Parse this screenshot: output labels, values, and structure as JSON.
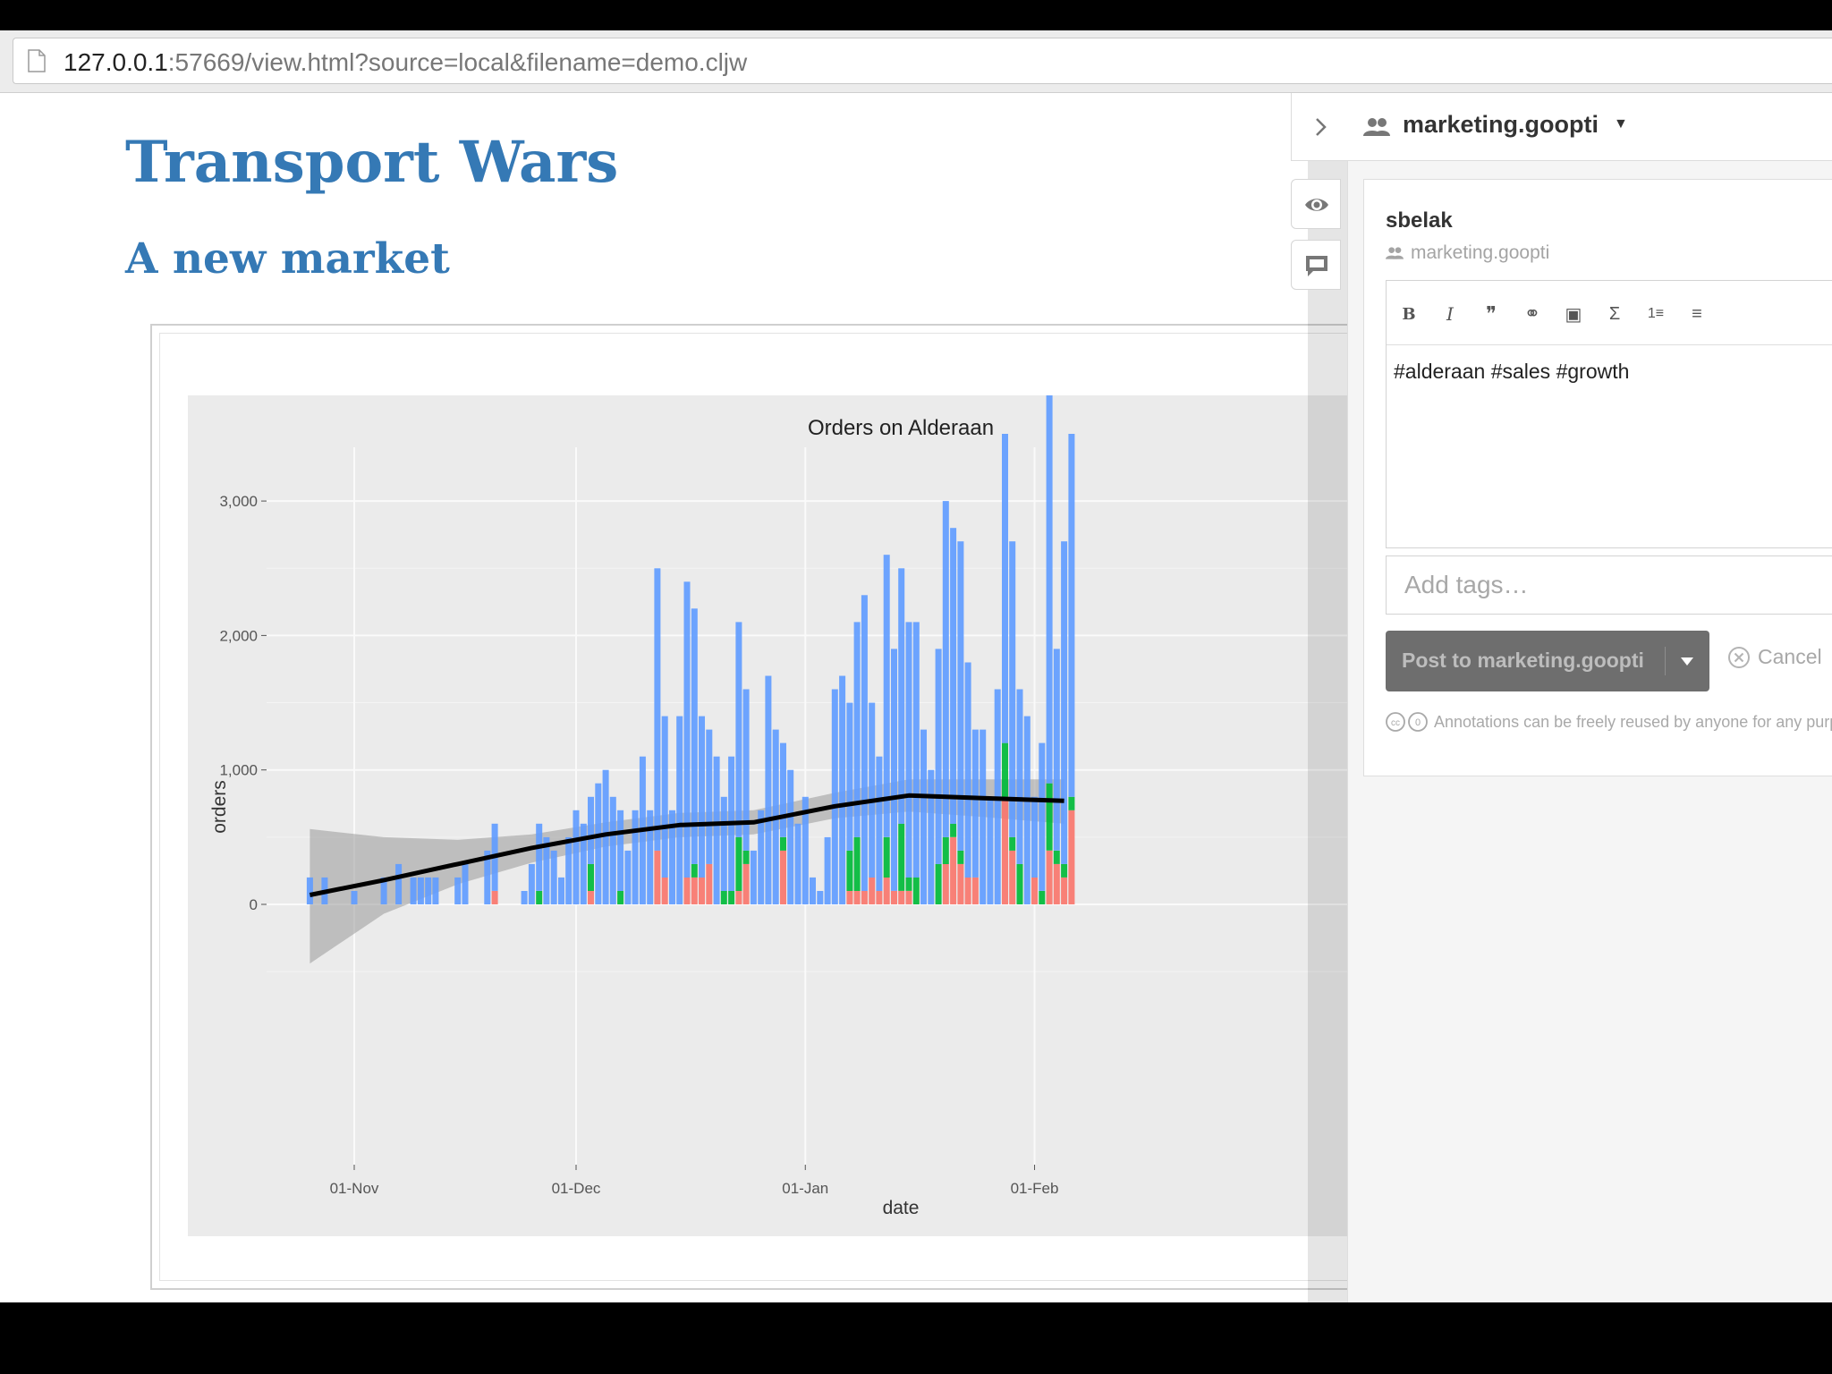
{
  "browser": {
    "url_host": "127.0.0.1",
    "url_rest": ":57669/view.html?source=local&filename=demo.cljw"
  },
  "document": {
    "title": "Transport Wars",
    "subtitle": "A new market"
  },
  "chart_data": {
    "type": "bar",
    "title": "Orders on Alderaan",
    "xlabel": "date",
    "ylabel": "orders",
    "ylim": [
      -700,
      3500
    ],
    "yticks": [
      0,
      1000,
      2000,
      3000
    ],
    "ytick_labels": [
      "0",
      "1,000",
      "2,000",
      "3,000"
    ],
    "xticks": [
      "2016-11-01",
      "2016-12-01",
      "2017-01-01",
      "2017-02-01"
    ],
    "xtick_labels": [
      "01-Nov",
      "01-Dec",
      "01-Jan",
      "01-Feb"
    ],
    "xlim": [
      "2016-10-25",
      "2017-02-06"
    ],
    "stacked": true,
    "grid": true,
    "colors": [
      "#f8766d",
      "#00ba38",
      "#619cff"
    ],
    "background": "#ebebeb",
    "bars": [
      {
        "x": "2016-10-26",
        "series": [
          0,
          0,
          200
        ]
      },
      {
        "x": "2016-10-28",
        "series": [
          0,
          0,
          200
        ]
      },
      {
        "x": "2016-11-01",
        "series": [
          0,
          0,
          100
        ]
      },
      {
        "x": "2016-11-05",
        "series": [
          0,
          0,
          200
        ]
      },
      {
        "x": "2016-11-07",
        "series": [
          0,
          0,
          300
        ]
      },
      {
        "x": "2016-11-09",
        "series": [
          0,
          0,
          200
        ]
      },
      {
        "x": "2016-11-10",
        "series": [
          0,
          0,
          200
        ]
      },
      {
        "x": "2016-11-11",
        "series": [
          0,
          0,
          200
        ]
      },
      {
        "x": "2016-11-12",
        "series": [
          0,
          0,
          200
        ]
      },
      {
        "x": "2016-11-15",
        "series": [
          0,
          0,
          200
        ]
      },
      {
        "x": "2016-11-16",
        "series": [
          0,
          0,
          300
        ]
      },
      {
        "x": "2016-11-19",
        "series": [
          0,
          0,
          400
        ]
      },
      {
        "x": "2016-11-20",
        "series": [
          100,
          0,
          500
        ]
      },
      {
        "x": "2016-11-24",
        "series": [
          0,
          0,
          100
        ]
      },
      {
        "x": "2016-11-25",
        "series": [
          0,
          0,
          300
        ]
      },
      {
        "x": "2016-11-26",
        "series": [
          0,
          100,
          500
        ]
      },
      {
        "x": "2016-11-27",
        "series": [
          0,
          0,
          500
        ]
      },
      {
        "x": "2016-11-28",
        "series": [
          0,
          0,
          400
        ]
      },
      {
        "x": "2016-11-29",
        "series": [
          0,
          0,
          200
        ]
      },
      {
        "x": "2016-11-30",
        "series": [
          0,
          0,
          500
        ]
      },
      {
        "x": "2016-12-01",
        "series": [
          0,
          0,
          700
        ]
      },
      {
        "x": "2016-12-02",
        "series": [
          0,
          0,
          600
        ]
      },
      {
        "x": "2016-12-03",
        "series": [
          100,
          200,
          500
        ]
      },
      {
        "x": "2016-12-04",
        "series": [
          0,
          0,
          900
        ]
      },
      {
        "x": "2016-12-05",
        "series": [
          0,
          0,
          1000
        ]
      },
      {
        "x": "2016-12-06",
        "series": [
          0,
          0,
          800
        ]
      },
      {
        "x": "2016-12-07",
        "series": [
          0,
          100,
          600
        ]
      },
      {
        "x": "2016-12-08",
        "series": [
          0,
          0,
          400
        ]
      },
      {
        "x": "2016-12-09",
        "series": [
          0,
          0,
          700
        ]
      },
      {
        "x": "2016-12-10",
        "series": [
          0,
          0,
          1100
        ]
      },
      {
        "x": "2016-12-11",
        "series": [
          0,
          0,
          700
        ]
      },
      {
        "x": "2016-12-12",
        "series": [
          400,
          0,
          2100
        ]
      },
      {
        "x": "2016-12-13",
        "series": [
          200,
          0,
          1200
        ]
      },
      {
        "x": "2016-12-14",
        "series": [
          0,
          0,
          700
        ]
      },
      {
        "x": "2016-12-15",
        "series": [
          0,
          0,
          1400
        ]
      },
      {
        "x": "2016-12-16",
        "series": [
          200,
          0,
          2200
        ]
      },
      {
        "x": "2016-12-17",
        "series": [
          200,
          100,
          1900
        ]
      },
      {
        "x": "2016-12-18",
        "series": [
          200,
          0,
          1200
        ]
      },
      {
        "x": "2016-12-19",
        "series": [
          300,
          0,
          1000
        ]
      },
      {
        "x": "2016-12-20",
        "series": [
          0,
          0,
          1100
        ]
      },
      {
        "x": "2016-12-21",
        "series": [
          0,
          100,
          700
        ]
      },
      {
        "x": "2016-12-22",
        "series": [
          0,
          100,
          1000
        ]
      },
      {
        "x": "2016-12-23",
        "series": [
          100,
          400,
          1600
        ]
      },
      {
        "x": "2016-12-24",
        "series": [
          300,
          100,
          1200
        ]
      },
      {
        "x": "2016-12-25",
        "series": [
          0,
          0,
          400
        ]
      },
      {
        "x": "2016-12-26",
        "series": [
          0,
          0,
          700
        ]
      },
      {
        "x": "2016-12-27",
        "series": [
          0,
          0,
          1700
        ]
      },
      {
        "x": "2016-12-28",
        "series": [
          0,
          0,
          1300
        ]
      },
      {
        "x": "2016-12-29",
        "series": [
          400,
          100,
          700
        ]
      },
      {
        "x": "2016-12-30",
        "series": [
          0,
          0,
          1000
        ]
      },
      {
        "x": "2016-12-31",
        "series": [
          0,
          0,
          600
        ]
      },
      {
        "x": "2017-01-01",
        "series": [
          0,
          0,
          800
        ]
      },
      {
        "x": "2017-01-02",
        "series": [
          0,
          0,
          200
        ]
      },
      {
        "x": "2017-01-03",
        "series": [
          0,
          0,
          100
        ]
      },
      {
        "x": "2017-01-04",
        "series": [
          0,
          0,
          500
        ]
      },
      {
        "x": "2017-01-05",
        "series": [
          0,
          0,
          1600
        ]
      },
      {
        "x": "2017-01-06",
        "series": [
          0,
          0,
          1700
        ]
      },
      {
        "x": "2017-01-07",
        "series": [
          100,
          300,
          1100
        ]
      },
      {
        "x": "2017-01-08",
        "series": [
          100,
          400,
          1600
        ]
      },
      {
        "x": "2017-01-09",
        "series": [
          100,
          0,
          2200
        ]
      },
      {
        "x": "2017-01-10",
        "series": [
          200,
          0,
          1300
        ]
      },
      {
        "x": "2017-01-11",
        "series": [
          100,
          0,
          1000
        ]
      },
      {
        "x": "2017-01-12",
        "series": [
          200,
          300,
          2100
        ]
      },
      {
        "x": "2017-01-13",
        "series": [
          100,
          0,
          1800
        ]
      },
      {
        "x": "2017-01-14",
        "series": [
          100,
          500,
          1900
        ]
      },
      {
        "x": "2017-01-15",
        "series": [
          100,
          100,
          1900
        ]
      },
      {
        "x": "2017-01-16",
        "series": [
          0,
          200,
          1900
        ]
      },
      {
        "x": "2017-01-17",
        "series": [
          0,
          0,
          1300
        ]
      },
      {
        "x": "2017-01-18",
        "series": [
          0,
          0,
          1000
        ]
      },
      {
        "x": "2017-01-19",
        "series": [
          0,
          300,
          1600
        ]
      },
      {
        "x": "2017-01-20",
        "series": [
          300,
          200,
          2500
        ]
      },
      {
        "x": "2017-01-21",
        "series": [
          500,
          100,
          2200
        ]
      },
      {
        "x": "2017-01-22",
        "series": [
          300,
          100,
          2300
        ]
      },
      {
        "x": "2017-01-23",
        "series": [
          200,
          0,
          1600
        ]
      },
      {
        "x": "2017-01-24",
        "series": [
          200,
          0,
          1100
        ]
      },
      {
        "x": "2017-01-25",
        "series": [
          0,
          0,
          1300
        ]
      },
      {
        "x": "2017-01-26",
        "series": [
          0,
          0,
          800
        ]
      },
      {
        "x": "2017-01-27",
        "series": [
          0,
          0,
          1600
        ]
      },
      {
        "x": "2017-01-28",
        "series": [
          800,
          400,
          2300
        ]
      },
      {
        "x": "2017-01-29",
        "series": [
          400,
          100,
          2200
        ]
      },
      {
        "x": "2017-01-30",
        "series": [
          0,
          300,
          1300
        ]
      },
      {
        "x": "2017-01-31",
        "series": [
          0,
          0,
          1400
        ]
      },
      {
        "x": "2017-02-01",
        "series": [
          200,
          0,
          600
        ]
      },
      {
        "x": "2017-02-02",
        "series": [
          0,
          100,
          1100
        ]
      },
      {
        "x": "2017-02-03",
        "series": [
          400,
          500,
          3100
        ]
      },
      {
        "x": "2017-02-04",
        "series": [
          300,
          100,
          1500
        ]
      },
      {
        "x": "2017-02-05",
        "series": [
          200,
          100,
          2400
        ]
      },
      {
        "x": "2017-02-06",
        "series": [
          700,
          100,
          2700
        ]
      }
    ],
    "trend": {
      "x": [
        "2016-10-26",
        "2016-11-05",
        "2016-11-15",
        "2016-11-25",
        "2016-12-05",
        "2016-12-15",
        "2016-12-25",
        "2017-01-05",
        "2017-01-15",
        "2017-01-25",
        "2017-02-05"
      ],
      "y": [
        70,
        180,
        300,
        420,
        520,
        590,
        610,
        730,
        810,
        790,
        770
      ],
      "lower": [
        -440,
        -70,
        150,
        310,
        430,
        500,
        520,
        640,
        690,
        650,
        600
      ],
      "upper": [
        560,
        500,
        480,
        520,
        610,
        680,
        700,
        830,
        930,
        930,
        930
      ]
    }
  },
  "sidebar": {
    "group_name": "marketing.goopti",
    "annotation": {
      "user": "sbelak",
      "group": "marketing.goopti",
      "text": "#alderaan #sales #growth",
      "toolbar": [
        "B",
        "I",
        "❞",
        "⚭",
        "▣",
        "Σ",
        "1≡",
        "≡"
      ],
      "tags_placeholder": "Add tags…",
      "post_label": "Post to marketing.goopti",
      "cancel_label": "Cancel",
      "license_text": "Annotations can be freely reused by anyone for any purpose."
    }
  }
}
